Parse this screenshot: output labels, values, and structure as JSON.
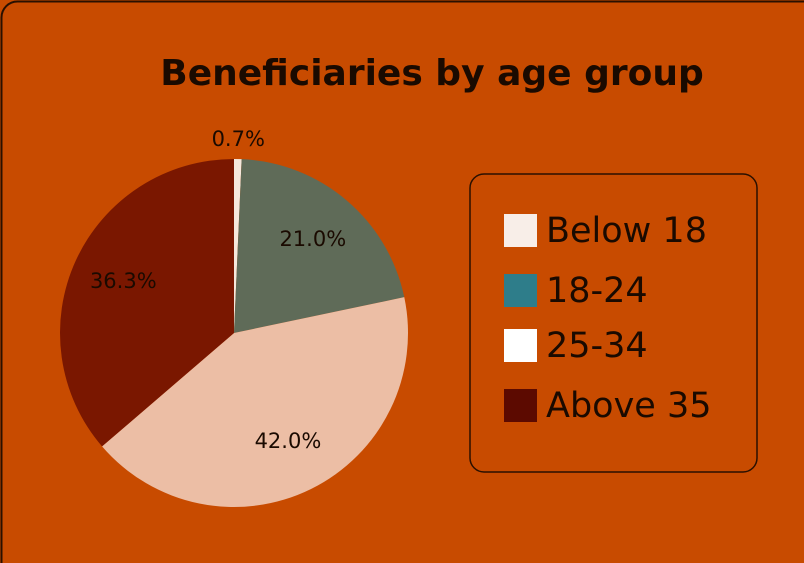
{
  "chart_data": {
    "type": "pie",
    "title": "Beneficiaries by age group",
    "categories": [
      "Below 18",
      "18-24",
      "25-34",
      "Above 35"
    ],
    "values": [
      0.7,
      21.0,
      42.0,
      36.3
    ],
    "value_labels": [
      "0.7%",
      "21.0%",
      "42.0%",
      "36.3%"
    ],
    "colors": [
      "#f6e8dc",
      "#5f6b58",
      "#ecbea5",
      "#7a1700"
    ],
    "legend_colors": [
      "#f8eee8",
      "#2e7d8a",
      "#ffffff",
      "#5c0a00"
    ],
    "legend": "right"
  }
}
